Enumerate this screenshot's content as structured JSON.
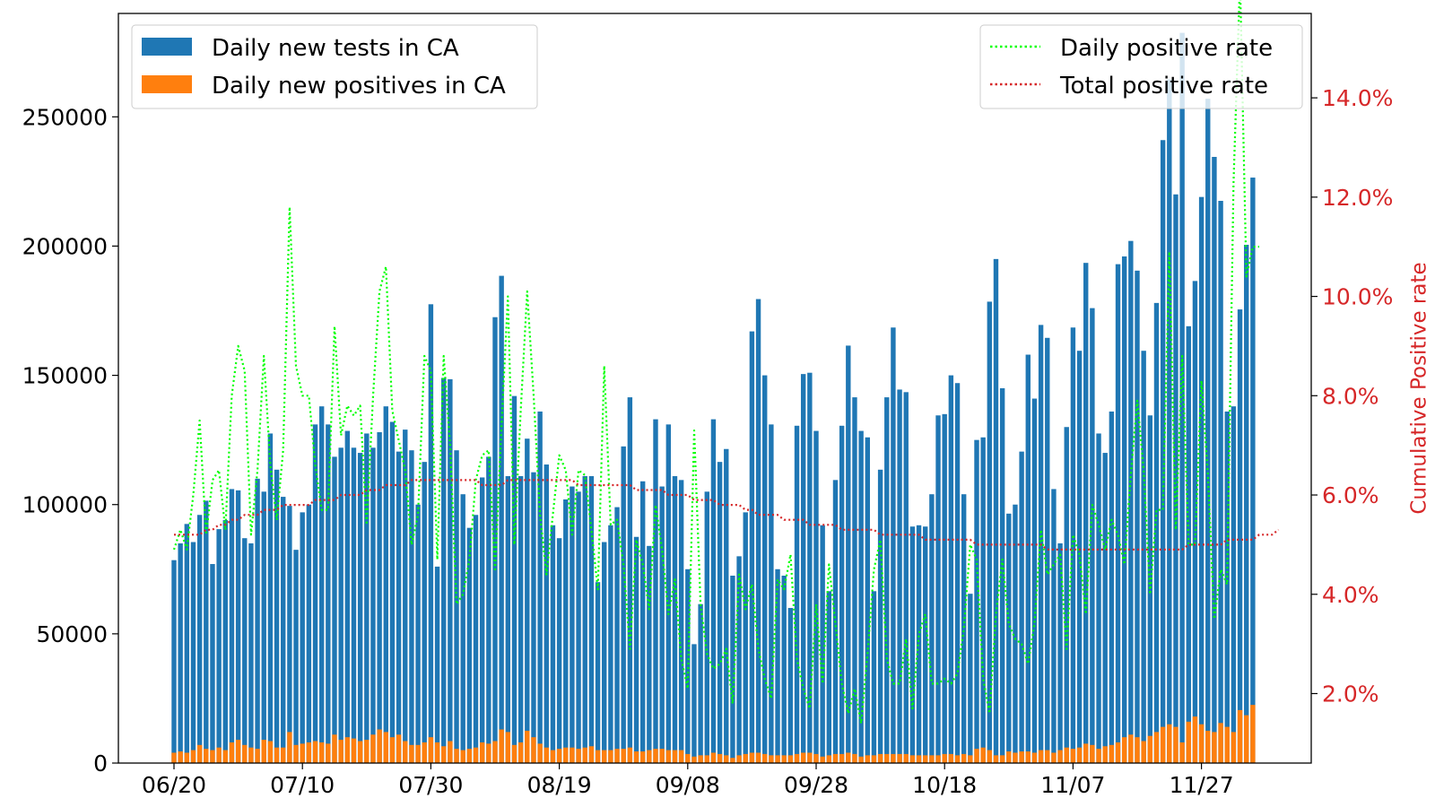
{
  "chart_data": {
    "type": "bar",
    "title": "",
    "xlabel": "",
    "ylabel": "",
    "y2label": "Cumulative Positive rate",
    "ylim": [
      0,
      290000
    ],
    "y2lim": [
      0.6,
      15.7
    ],
    "grid": false,
    "start_date": "06/20",
    "x_tick_labels": [
      "06/20",
      "07/10",
      "07/30",
      "08/19",
      "09/08",
      "09/28",
      "10/18",
      "11/07",
      "11/27"
    ],
    "x_tick_days": [
      0,
      20,
      40,
      60,
      80,
      100,
      120,
      140,
      160
    ],
    "y_ticks": [
      0,
      50000,
      100000,
      150000,
      200000,
      250000
    ],
    "y2_ticks": [
      2.0,
      4.0,
      6.0,
      8.0,
      10.0,
      12.0,
      14.0
    ],
    "y2_tick_labels": [
      "2.0%",
      "4.0%",
      "6.0%",
      "8.0%",
      "10.0%",
      "12.0%",
      "14.0%"
    ],
    "legend_left": {
      "position": "top-left",
      "entries": [
        "Daily new tests in CA",
        "Daily new positives in CA"
      ]
    },
    "legend_right": {
      "position": "top-right",
      "entries": [
        "Daily positive rate",
        "Total positive rate"
      ]
    },
    "colors": {
      "tests": "#1f77b4",
      "positives": "#ff7f0e",
      "daily_rate": "#00ff00",
      "total_rate": "#d62728",
      "y2_axis": "#d62728"
    },
    "series": [
      {
        "name": "Daily new tests in CA",
        "axis": "left",
        "values": [
          78500,
          85000,
          92500,
          85500,
          96000,
          101500,
          77000,
          90500,
          94000,
          106000,
          105500,
          87000,
          85000,
          110000,
          105000,
          127500,
          113500,
          103000,
          99500,
          82500,
          97000,
          100000,
          131000,
          138000,
          131000,
          118500,
          122000,
          128500,
          122000,
          120000,
          127500,
          122000,
          128000,
          138000,
          132000,
          120500,
          129000,
          121000,
          100000,
          116500,
          177500,
          76000,
          149000,
          148500,
          121000,
          104000,
          91000,
          96000,
          110500,
          118500,
          172500,
          188500,
          111000,
          142000,
          111000,
          125500,
          112500,
          136000,
          115500,
          92000,
          87000,
          102000,
          107000,
          105000,
          111000,
          111000,
          70000,
          85500,
          92000,
          99000,
          122500,
          141500,
          87500,
          109000,
          84000,
          133000,
          107000,
          131000,
          111000,
          109500,
          75000,
          46000,
          61500,
          105000,
          133000,
          116500,
          121500,
          72500,
          80000,
          97000,
          167000,
          179500,
          150000,
          131000,
          75000,
          72500,
          60000,
          130500,
          150500,
          151000,
          128500,
          92000,
          66500,
          109500,
          130500,
          161500,
          141500,
          128500,
          126000,
          66500,
          113500,
          141500,
          168500,
          144500,
          143500,
          91500,
          92000,
          91500,
          104000,
          134500,
          135000,
          150000,
          147000,
          104000,
          65500,
          125000,
          126000,
          178500,
          195000,
          145000,
          96500,
          100000,
          120500,
          158000,
          141000,
          169500,
          164500,
          106000,
          85000,
          130000,
          168500,
          159500,
          193500,
          176000,
          127500,
          120000,
          136000,
          193000,
          196000,
          202000,
          190500,
          159500,
          134500,
          178000,
          241000,
          264500,
          220000,
          282500,
          169000,
          186500,
          219000,
          257000,
          234500,
          217500,
          136000,
          138000,
          175500,
          200500,
          226500
        ],
        "positive_values": [
          4000,
          4500,
          4000,
          5000,
          7000,
          5500,
          5000,
          6000,
          5000,
          8000,
          9000,
          7000,
          6000,
          5500,
          9000,
          8500,
          6000,
          6000,
          12000,
          7000,
          7500,
          8000,
          8500,
          8000,
          7500,
          11000,
          9000,
          10000,
          9500,
          8500,
          9000,
          11000,
          13000,
          12000,
          10000,
          11000,
          8500,
          7000,
          7000,
          8000,
          10000,
          8000,
          6500,
          8500,
          5500,
          5000,
          5500,
          6000,
          8000,
          7500,
          8500,
          13000,
          12000,
          7000,
          8000,
          12500,
          10000,
          7500,
          6000,
          5000,
          5500,
          6000,
          6000,
          5500,
          6000,
          6500,
          5000,
          5000,
          5000,
          5500,
          5500,
          6000,
          4500,
          4500,
          5000,
          5500,
          5500,
          5000,
          5000,
          5000,
          3500,
          2500,
          3000,
          3000,
          4000,
          3500,
          3000,
          2000,
          3000,
          3500,
          4000,
          4000,
          3500,
          3000,
          3000,
          3000,
          3000,
          3500,
          4000,
          4000,
          3500,
          2500,
          3000,
          3500,
          3500,
          4000,
          3500,
          2500,
          3000,
          3000,
          3500,
          3500,
          3500,
          3500,
          3500,
          3000,
          3000,
          3000,
          3000,
          3000,
          3500,
          3500,
          3000,
          3500,
          3000,
          5500,
          6000,
          5000,
          3000,
          3000,
          4500,
          4000,
          4500,
          4500,
          4000,
          5000,
          5000,
          4000,
          5000,
          6000,
          5500,
          6000,
          7500,
          7000,
          5500,
          6500,
          7000,
          8000,
          10000,
          11000,
          10000,
          8500,
          10500,
          12000,
          14000,
          15000,
          14000,
          8000,
          16000,
          18000,
          15000,
          12500,
          12000,
          15500,
          14000,
          12000,
          20500,
          18500,
          22500,
          25000
        ]
      },
      {
        "name": "Daily positive rate",
        "axis": "right",
        "values": [
          4.9,
          5.3,
          4.9,
          6.0,
          7.5,
          5.2,
          6.3,
          6.5,
          5.3,
          8.0,
          9.0,
          8.5,
          5.2,
          6.5,
          8.8,
          6.6,
          5.5,
          6.9,
          11.8,
          8.6,
          8.0,
          8.0,
          6.6,
          5.7,
          5.7,
          9.4,
          7.2,
          7.8,
          7.6,
          7.8,
          5.4,
          8.0,
          10.1,
          10.6,
          7.7,
          7.1,
          6.5,
          5.0,
          5.6,
          8.8,
          8.5,
          4.7,
          8.8,
          7.0,
          3.8,
          4.0,
          4.7,
          6.3,
          6.8,
          6.9,
          4.5,
          7.4,
          10.0,
          5.0,
          7.7,
          10.1,
          8.0,
          5.6,
          4.4,
          5.6,
          6.8,
          6.5,
          5.2,
          6.5,
          6.4,
          5.3,
          4.1,
          8.6,
          5.4,
          5.5,
          4.6,
          2.9,
          5.1,
          4.6,
          3.7,
          5.8,
          4.9,
          3.6,
          4.3,
          2.7,
          2.1,
          7.3,
          3.8,
          2.8,
          2.5,
          2.6,
          2.9,
          1.8,
          4.4,
          3.7,
          4.2,
          2.9,
          2.3,
          1.9,
          4.3,
          4.1,
          4.8,
          2.7,
          2.1,
          1.7,
          3.8,
          2.2,
          4.6,
          3.4,
          2.2,
          1.6,
          2.1,
          1.4,
          2.8,
          4.5,
          5.1,
          2.7,
          2.2,
          2.2,
          3.1,
          1.7,
          3.2,
          3.6,
          2.2,
          2.2,
          2.3,
          2.2,
          2.4,
          3.3,
          5.0,
          4.7,
          2.3,
          1.6,
          3.6,
          4.7,
          3.4,
          3.1,
          3.0,
          2.6,
          3.4,
          5.3,
          4.4,
          4.6,
          4.8,
          2.9,
          5.2,
          4.8,
          3.6,
          5.8,
          5.4,
          4.9,
          5.5,
          5.2,
          4.6,
          6.4,
          7.9,
          6.5,
          4.0,
          5.7,
          5.7,
          10.9,
          5.3,
          8.8,
          5.0,
          5.0,
          8.3,
          6.4,
          3.5,
          4.5,
          4.2,
          12.3,
          16.4,
          10.4,
          11.0,
          11.0
        ]
      },
      {
        "name": "Total positive rate",
        "axis": "right",
        "values": [
          5.2,
          5.2,
          5.2,
          5.2,
          5.2,
          5.3,
          5.3,
          5.4,
          5.4,
          5.5,
          5.5,
          5.6,
          5.6,
          5.6,
          5.7,
          5.7,
          5.7,
          5.8,
          5.8,
          5.8,
          5.8,
          5.8,
          5.9,
          5.9,
          5.9,
          5.9,
          6.0,
          6.0,
          6.0,
          6.0,
          6.1,
          6.1,
          6.1,
          6.2,
          6.2,
          6.2,
          6.2,
          6.3,
          6.3,
          6.3,
          6.3,
          6.3,
          6.3,
          6.3,
          6.3,
          6.3,
          6.3,
          6.3,
          6.2,
          6.2,
          6.2,
          6.2,
          6.3,
          6.3,
          6.3,
          6.3,
          6.3,
          6.3,
          6.3,
          6.3,
          6.3,
          6.3,
          6.3,
          6.2,
          6.2,
          6.2,
          6.2,
          6.2,
          6.2,
          6.2,
          6.2,
          6.2,
          6.1,
          6.1,
          6.1,
          6.1,
          6.1,
          6.0,
          6.0,
          6.0,
          6.0,
          5.9,
          5.9,
          5.9,
          5.9,
          5.8,
          5.8,
          5.8,
          5.8,
          5.7,
          5.7,
          5.6,
          5.6,
          5.6,
          5.6,
          5.5,
          5.5,
          5.5,
          5.5,
          5.4,
          5.4,
          5.4,
          5.4,
          5.4,
          5.3,
          5.3,
          5.3,
          5.3,
          5.3,
          5.3,
          5.2,
          5.2,
          5.2,
          5.2,
          5.2,
          5.2,
          5.2,
          5.1,
          5.1,
          5.1,
          5.1,
          5.1,
          5.1,
          5.1,
          5.1,
          5.0,
          5.0,
          5.0,
          5.0,
          5.0,
          5.0,
          5.0,
          5.0,
          5.0,
          5.0,
          5.0,
          4.9,
          4.9,
          4.9,
          4.9,
          4.9,
          4.9,
          4.9,
          4.9,
          4.9,
          4.9,
          4.9,
          4.9,
          4.9,
          4.9,
          4.9,
          4.9,
          4.9,
          4.9,
          4.9,
          4.9,
          4.9,
          4.9,
          5.0,
          5.0,
          5.0,
          5.0,
          5.0,
          5.0,
          5.1,
          5.1,
          5.1,
          5.1,
          5.1,
          5.2,
          5.2,
          5.2,
          5.3
        ]
      }
    ]
  }
}
